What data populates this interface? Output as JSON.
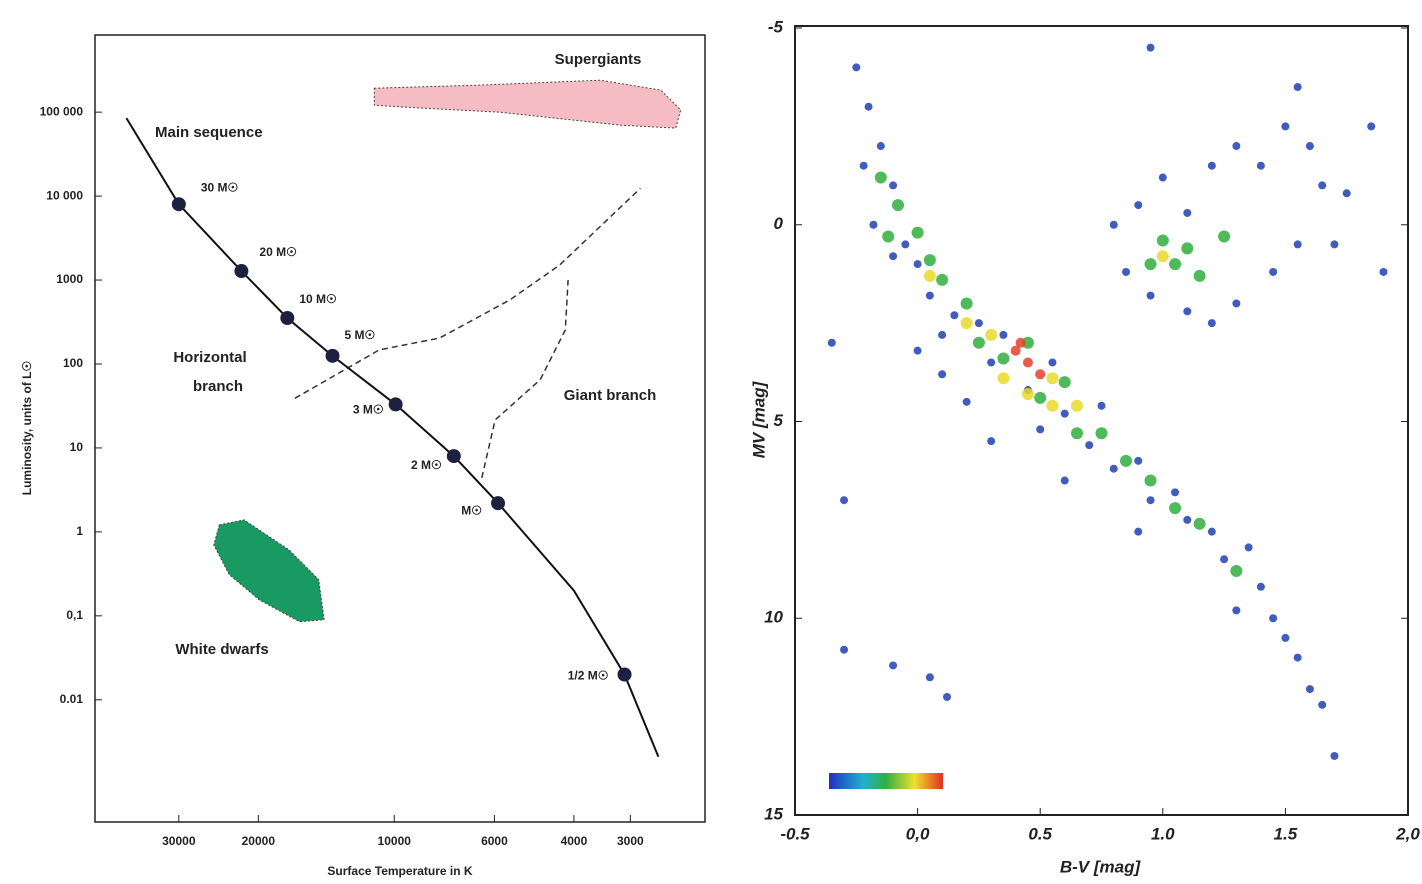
{
  "chart_data": [
    {
      "type": "line",
      "xlabel": "Surface Temperature in K",
      "ylabel": "Luminosity, units of L☉",
      "xscale": "log",
      "yscale": "log",
      "xlim": [
        46000,
        2050
      ],
      "ylim": [
        0.00035,
        830000
      ],
      "xticks": [
        30000,
        20000,
        10000,
        6000,
        4000,
        3000
      ],
      "yticks": [
        {
          "value": 100000,
          "label": "100 000"
        },
        {
          "value": 10000,
          "label": "10 000"
        },
        1000,
        100,
        10,
        1,
        {
          "value": 0.1,
          "label": "0,1"
        },
        {
          "value": 0.01,
          "label": "0.01"
        }
      ],
      "series": [
        {
          "color": "#111111",
          "x": [
            39200,
            30000,
            21800,
            17250,
            13700,
            9930,
            7380,
            5890,
            4000,
            3090,
            2600
          ],
          "values": [
            85000,
            8000,
            1280,
            353,
            125,
            33,
            8,
            2.2,
            0.2,
            0.02,
            0.0021
          ]
        }
      ],
      "dashed_curves": [
        {
          "color": "#333333",
          "x": [
            16600,
            10800,
            7930,
            5550,
            4300,
            2850
          ],
          "values": [
            39,
            147,
            204,
            578,
            1510,
            12400
          ]
        },
        {
          "color": "#333333",
          "x": [
            6400,
            5980,
            4750,
            4180,
            4120
          ],
          "values": [
            4.4,
            21.5,
            65,
            254,
            1000
          ]
        }
      ],
      "points": {
        "color": "#1c2140",
        "x": [
          30000,
          21800,
          17250,
          13700,
          9930,
          7380,
          5890,
          3090
        ],
        "values": [
          8000,
          1280,
          353,
          125,
          33,
          8,
          2.2,
          0.02
        ],
        "labels": [
          "30 M☉",
          "20 M☉",
          "10 M☉",
          "5 M☉",
          "3 M☉",
          "2 M☉",
          "M☉",
          "1/2 M☉"
        ]
      },
      "regions": [
        {
          "label": "Supergiants",
          "color": "#f5bcc4",
          "x": [
            11070,
            6450,
            3500,
            2570,
            2320,
            2380,
            3150,
            5830,
            8790,
            11070
          ],
          "values": [
            193000,
            210000,
            240000,
            183000,
            106000,
            64600,
            70000,
            100000,
            112000,
            121000
          ]
        },
        {
          "label": "White dwarfs",
          "color": "#1a9a63",
          "x": [
            24400,
            21500,
            17100,
            14700,
            14300,
            16200,
            19900,
            23200,
            25100
          ],
          "values": [
            1.21,
            1.39,
            0.61,
            0.27,
            0.09,
            0.085,
            0.155,
            0.31,
            0.7
          ]
        }
      ],
      "annotations": [
        "Main sequence",
        "Horizontal",
        "branch",
        "Giant branch"
      ]
    },
    {
      "type": "scatter",
      "xlabel": "B-V [mag]",
      "ylabel": "MV [mag]",
      "xlim": [
        -0.5,
        2.0
      ],
      "ylim": [
        15,
        -5
      ],
      "xticks": [
        -0.5,
        {
          "value": 0.0,
          "label": "0,0"
        },
        0.5,
        {
          "value": 1.0,
          "label": "1.0"
        },
        1.5,
        {
          "value": 2.0,
          "label": "2,0"
        }
      ],
      "yticks": [
        -5,
        0,
        5,
        10,
        15
      ],
      "series": [
        {
          "color": "#1f3fb0",
          "x": [
            -0.25,
            -0.2,
            -0.15,
            -0.22,
            -0.1,
            -0.18,
            -0.05,
            0,
            -0.1,
            0.05,
            0.15,
            0.1,
            0.25,
            0.3,
            0.35,
            0.45,
            0.55,
            0.6,
            0.5,
            0.7,
            0.75,
            0.8,
            0.9,
            0.95,
            1.05,
            1.1,
            1.2,
            1.25,
            1.35,
            1.4,
            1.45,
            1.5,
            1.55,
            1.6,
            1.65,
            1.7,
            0,
            0.1,
            0.2,
            0.3,
            0.6,
            0.9,
            1.3,
            0.8,
            0.9,
            1,
            1.1,
            1.2,
            1.3,
            1.4,
            1.5,
            1.6,
            1.65,
            1.7,
            1.55,
            1.45,
            1.3,
            1.2,
            1.1,
            0.95,
            0.85,
            1.75,
            -0.35,
            -0.3,
            -0.3,
            -0.1,
            0.05,
            0.12,
            1.55,
            1.85,
            0.95,
            1.9
          ],
          "values": [
            -4,
            -3,
            -2,
            -1.5,
            -1,
            0,
            0.5,
            1,
            0.8,
            1.8,
            2.3,
            2.8,
            2.5,
            3.5,
            2.8,
            4.2,
            3.5,
            4.8,
            5.2,
            5.6,
            4.6,
            6.2,
            6,
            7,
            6.8,
            7.5,
            7.8,
            8.5,
            8.2,
            9.2,
            10,
            10.5,
            11,
            11.8,
            12.2,
            13.5,
            3.2,
            3.8,
            4.5,
            5.5,
            6.5,
            7.8,
            9.8,
            0,
            -0.5,
            -1.2,
            -0.3,
            -1.5,
            -2,
            -1.5,
            -2.5,
            -2,
            -1,
            0.5,
            0.5,
            1.2,
            2,
            2.5,
            2.2,
            1.8,
            1.2,
            -0.8,
            3,
            7,
            10.8,
            11.2,
            11.5,
            12,
            -3.5,
            -2.5,
            -4.5,
            1.2
          ]
        },
        {
          "color": "#2fae3c",
          "x": [
            -0.15,
            -0.08,
            -0.12,
            0,
            0.05,
            0.1,
            0.2,
            0.25,
            0.35,
            0.45,
            0.5,
            0.6,
            0.65,
            0.75,
            0.85,
            0.95,
            1.05,
            1.15,
            1.3,
            1,
            1.05,
            1.1,
            0.95,
            1.15,
            1.25
          ],
          "values": [
            -1.2,
            -0.5,
            0.3,
            0.2,
            0.9,
            1.4,
            2,
            3,
            3.4,
            3,
            4.4,
            4,
            5.3,
            5.3,
            6,
            6.5,
            7.2,
            7.6,
            8.8,
            0.4,
            1,
            0.6,
            1,
            1.3,
            0.3
          ]
        },
        {
          "color": "#e8d92a",
          "x": [
            0.05,
            0.2,
            0.3,
            0.35,
            0.45,
            0.55,
            0.55,
            0.65,
            1
          ],
          "values": [
            1.3,
            2.5,
            2.8,
            3.9,
            4.3,
            4.6,
            3.9,
            4.6,
            0.8
          ]
        },
        {
          "color": "#e4402a",
          "x": [
            0.4,
            0.45,
            0.5,
            0.42
          ],
          "values": [
            3.2,
            3.5,
            3.8,
            3.0
          ]
        }
      ]
    }
  ]
}
